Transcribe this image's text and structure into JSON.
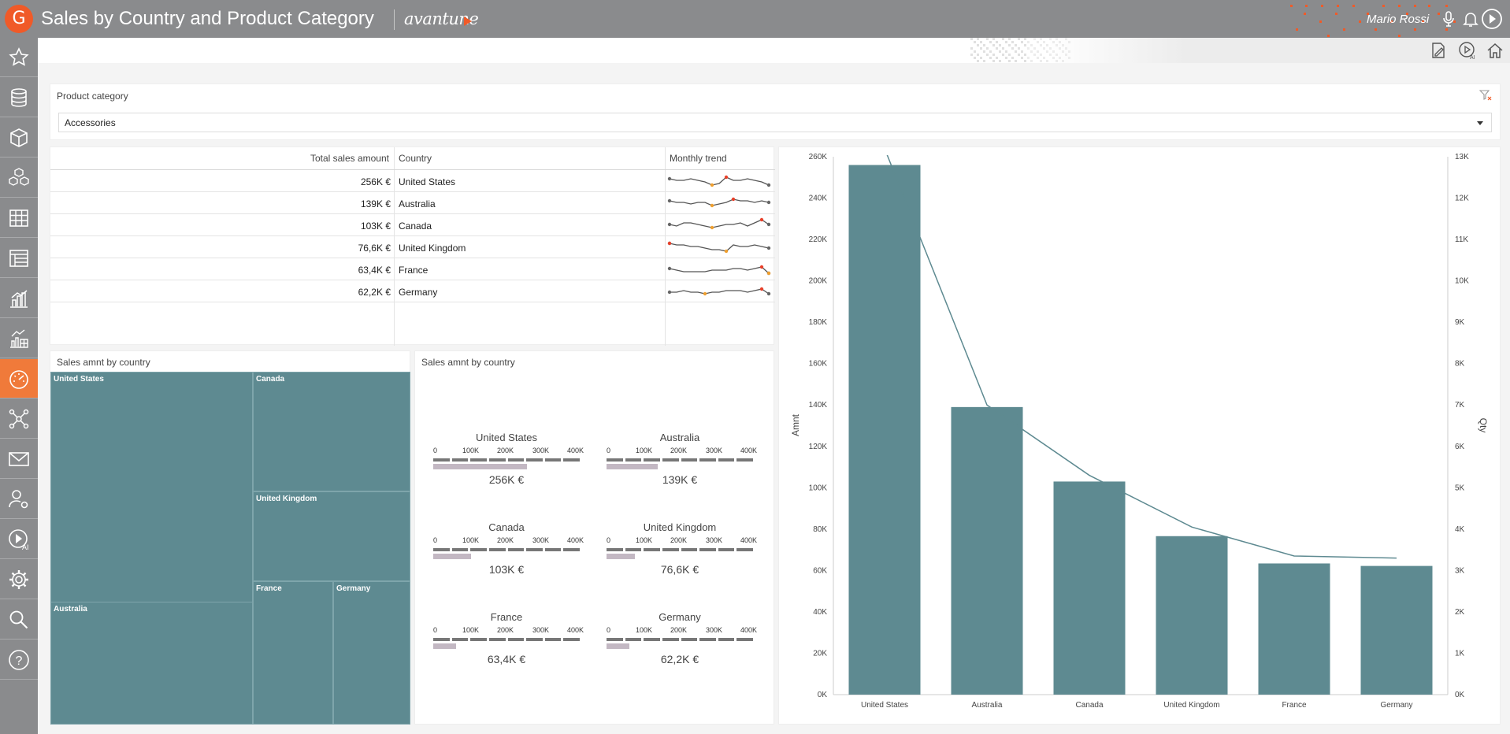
{
  "header": {
    "logo_letter": "G",
    "title": "Sales by Country and Product Category",
    "brand": "avantune",
    "user_name": "Mario Rossi"
  },
  "sidebar": {
    "items": [
      "star-icon",
      "database-icon",
      "cube-icon",
      "cubes-icon",
      "grid-icon",
      "report-icon",
      "bar-chart-icon",
      "chart-widget-icon",
      "dashboard-icon",
      "network-icon",
      "mail-icon",
      "users-gear-icon",
      "ai-play-icon",
      "gear-icon",
      "search-icon",
      "help-icon"
    ],
    "active_index": 8
  },
  "filter": {
    "label": "Product category",
    "selected": "Accessories"
  },
  "table": {
    "headers": [
      "Total sales amount",
      "Country",
      "Monthly trend"
    ],
    "rows": [
      {
        "amount": "256K €",
        "country": "United States"
      },
      {
        "amount": "139K €",
        "country": "Australia"
      },
      {
        "amount": "103K €",
        "country": "Canada"
      },
      {
        "amount": "76,6K €",
        "country": "United Kingdom"
      },
      {
        "amount": "63,4K €",
        "country": "France"
      },
      {
        "amount": "62,2K €",
        "country": "Germany"
      }
    ],
    "sparklines": [
      [
        5,
        4,
        4,
        5,
        4,
        3,
        1,
        2,
        6,
        4,
        4,
        5,
        4,
        3,
        1
      ],
      [
        5,
        4,
        4,
        3,
        4,
        4,
        2,
        3,
        4,
        6,
        5,
        5,
        4,
        5,
        4
      ],
      [
        4,
        3,
        5,
        5,
        4,
        3,
        2,
        3,
        4,
        4,
        5,
        3,
        5,
        7,
        4
      ],
      [
        6,
        5,
        5,
        4,
        4,
        3,
        2,
        2,
        1,
        5,
        4,
        4,
        5,
        4,
        3
      ],
      [
        4,
        3,
        2,
        2,
        2,
        2,
        3,
        3,
        3,
        4,
        4,
        3,
        4,
        5,
        1
      ],
      [
        3,
        3,
        4,
        3,
        3,
        2,
        3,
        3,
        4,
        4,
        4,
        3,
        4,
        5,
        2
      ]
    ]
  },
  "treemap": {
    "title": "Sales amnt by country",
    "cells": [
      "United States",
      "Canada",
      "United Kingdom",
      "France",
      "Germany",
      "Australia"
    ]
  },
  "bullets": {
    "title": "Sales amnt by country",
    "ticks": [
      "0",
      "100K",
      "200K",
      "300K",
      "400K"
    ],
    "max": 400,
    "items": [
      {
        "name": "United States",
        "value": 256,
        "label": "256K €"
      },
      {
        "name": "Australia",
        "value": 139,
        "label": "139K €"
      },
      {
        "name": "Canada",
        "value": 103,
        "label": "103K €"
      },
      {
        "name": "United Kingdom",
        "value": 76.6,
        "label": "76,6K €"
      },
      {
        "name": "France",
        "value": 63.4,
        "label": "63,4K €"
      },
      {
        "name": "Germany",
        "value": 62.2,
        "label": "62,2K €"
      }
    ]
  },
  "chart_data": {
    "type": "bar",
    "categories": [
      "United States",
      "Australia",
      "Canada",
      "United Kingdom",
      "France",
      "Germany"
    ],
    "series": [
      {
        "values": [
          256,
          139,
          103,
          76.6,
          63.4,
          62.2
        ],
        "color": "#5e8a91"
      },
      {
        "values": [
          13.2,
          7.0,
          5.3,
          4.05,
          3.35,
          3.3
        ],
        "color": "#5e8a91"
      }
    ],
    "ylabel": "Amnt",
    "y2label": "Qty",
    "ylim": [
      0,
      260
    ],
    "y2lim": [
      0,
      13
    ],
    "yticks": [
      "0K",
      "20K",
      "40K",
      "60K",
      "80K",
      "100K",
      "120K",
      "140K",
      "160K",
      "180K",
      "200K",
      "220K",
      "240K",
      "260K"
    ],
    "y2ticks": [
      "0K",
      "1K",
      "2K",
      "3K",
      "4K",
      "5K",
      "6K",
      "7K",
      "8K",
      "9K",
      "10K",
      "11K",
      "12K",
      "13K"
    ]
  },
  "colors": {
    "accent": "#f05a28",
    "bar": "#5e8a91",
    "topbar": "#8a8b8d"
  }
}
